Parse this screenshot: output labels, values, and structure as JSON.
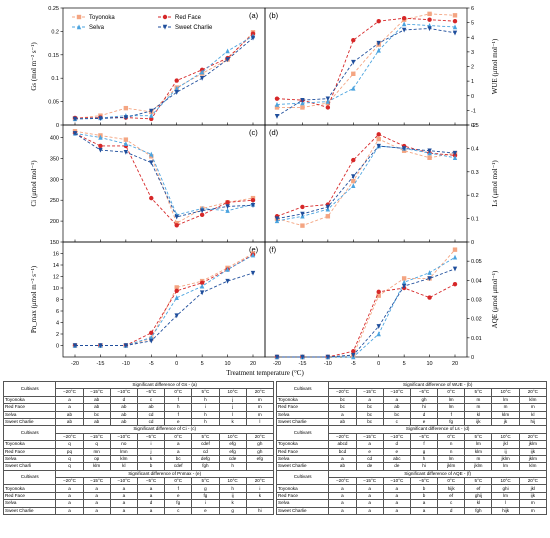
{
  "chart_data": [
    {
      "type": "line",
      "panel": "(a)",
      "ylabel": "Gs (mol m⁻² s⁻¹)",
      "ylim": [
        0.0,
        0.25
      ],
      "yticks": [
        0.0,
        0.05,
        0.1,
        0.15,
        0.2,
        0.25
      ],
      "x": [
        -20,
        -15,
        -10,
        -5,
        0,
        5,
        10,
        20
      ],
      "series": [
        {
          "name": "Toyonoka",
          "values": [
            0.014,
            0.02,
            0.036,
            0.028,
            0.08,
            0.11,
            0.14,
            0.198
          ]
        },
        {
          "name": "Red Face",
          "values": [
            0.015,
            0.016,
            0.016,
            0.013,
            0.095,
            0.118,
            0.143,
            0.195
          ]
        },
        {
          "name": "Selva",
          "values": [
            0.013,
            0.015,
            0.02,
            0.02,
            0.078,
            0.113,
            0.158,
            0.19
          ]
        },
        {
          "name": "Sweet Charlie",
          "values": [
            0.013,
            0.014,
            0.016,
            0.03,
            0.07,
            0.1,
            0.14,
            0.186
          ]
        }
      ]
    },
    {
      "type": "line",
      "panel": "(b)",
      "ylabel": "WUE (μmol mol⁻¹)",
      "ylim": [
        -2,
        6
      ],
      "yticks": [
        -2,
        -1,
        0,
        1,
        2,
        3,
        4,
        5,
        6
      ],
      "x": [
        -20,
        -15,
        -10,
        -5,
        0,
        5,
        10,
        20
      ],
      "series": [
        {
          "name": "Toyonoka",
          "values": [
            -0.8,
            -0.8,
            -0.5,
            1.5,
            3.5,
            5.2,
            5.6,
            5.5
          ]
        },
        {
          "name": "Red Face",
          "values": [
            -0.2,
            -0.3,
            -0.8,
            3.8,
            5.1,
            5.3,
            5.2,
            5.1
          ]
        },
        {
          "name": "Selva",
          "values": [
            -0.6,
            -0.5,
            -0.4,
            0.5,
            3.1,
            4.9,
            4.8,
            4.7
          ]
        },
        {
          "name": "Sweet Charlie",
          "values": [
            -1.4,
            -0.3,
            -0.2,
            2.3,
            3.6,
            4.5,
            4.6,
            4.3
          ]
        }
      ]
    },
    {
      "type": "line",
      "panel": "(c)",
      "ylabel": "Ci (μmol mol⁻¹)",
      "ylim": [
        150,
        430
      ],
      "yticks": [
        150,
        200,
        250,
        300,
        350,
        400
      ],
      "x": [
        -20,
        -15,
        -10,
        -5,
        0,
        5,
        10,
        20
      ],
      "series": [
        {
          "name": "Toyonoka",
          "values": [
            415,
            405,
            395,
            355,
            195,
            230,
            245,
            255
          ]
        },
        {
          "name": "Red Face",
          "values": [
            410,
            380,
            380,
            255,
            190,
            215,
            245,
            250
          ]
        },
        {
          "name": "Selva",
          "values": [
            410,
            400,
            385,
            360,
            215,
            230,
            225,
            240
          ]
        },
        {
          "name": "Sweet Charlie",
          "values": [
            410,
            370,
            365,
            340,
            210,
            225,
            235,
            238
          ]
        }
      ]
    },
    {
      "type": "line",
      "panel": "(d)",
      "ylabel": "Ls (μmol mol⁻¹)",
      "ylim": [
        0.0,
        0.5
      ],
      "yticks": [
        0.0,
        0.1,
        0.2,
        0.3,
        0.4,
        0.5
      ],
      "x": [
        -20,
        -15,
        -10,
        -5,
        0,
        5,
        10,
        20
      ],
      "series": [
        {
          "name": "Toyonoka",
          "values": [
            0.1,
            0.07,
            0.11,
            0.26,
            0.44,
            0.39,
            0.36,
            0.38
          ]
        },
        {
          "name": "Red Face",
          "values": [
            0.11,
            0.15,
            0.16,
            0.35,
            0.46,
            0.41,
            0.38,
            0.37
          ]
        },
        {
          "name": "Selva",
          "values": [
            0.09,
            0.11,
            0.14,
            0.24,
            0.41,
            0.4,
            0.38,
            0.36
          ]
        },
        {
          "name": "Sweet Charlie",
          "values": [
            0.1,
            0.12,
            0.15,
            0.28,
            0.41,
            0.4,
            0.39,
            0.38
          ]
        }
      ]
    },
    {
      "type": "line",
      "panel": "(e)",
      "ylabel": "Pn_max (μmol m⁻² s⁻¹)",
      "ylim": [
        -2,
        18
      ],
      "yticks": [
        0,
        2,
        4,
        6,
        8,
        10,
        12,
        14,
        16
      ],
      "x": [
        -20,
        -15,
        -10,
        -5,
        0,
        5,
        10,
        20
      ],
      "series": [
        {
          "name": "Toyonoka",
          "values": [
            0,
            0,
            0,
            1.2,
            10.1,
            11.2,
            13.5,
            16
          ]
        },
        {
          "name": "Red Face",
          "values": [
            0,
            0,
            0,
            2.2,
            9.5,
            10.9,
            13.2,
            15.8
          ]
        },
        {
          "name": "Selva",
          "values": [
            0,
            0,
            0,
            1.4,
            8.3,
            10.3,
            13.2,
            15.7
          ]
        },
        {
          "name": "Sweet Charlie",
          "values": [
            0,
            0,
            0,
            0.8,
            5.2,
            9.2,
            11.2,
            12.6
          ]
        }
      ]
    },
    {
      "type": "line",
      "panel": "(f)",
      "ylabel": "AQE (μmol μmol⁻¹)",
      "ylim": [
        0.0,
        0.06
      ],
      "yticks": [
        0.0,
        0.01,
        0.02,
        0.03,
        0.04,
        0.05
      ],
      "x": [
        -20,
        -15,
        -10,
        -5,
        0,
        5,
        10,
        20
      ],
      "series": [
        {
          "name": "Toyonoka",
          "values": [
            0,
            0,
            0,
            0.001,
            0.032,
            0.041,
            0.041,
            0.056
          ]
        },
        {
          "name": "Red Face",
          "values": [
            0,
            0,
            0,
            0.003,
            0.034,
            0.036,
            0.031,
            0.038
          ]
        },
        {
          "name": "Selva",
          "values": [
            0,
            0,
            0,
            0,
            0.012,
            0.039,
            0.044,
            0.052
          ]
        },
        {
          "name": "Sweet Charlie",
          "values": [
            0,
            0,
            0,
            0.001,
            0.016,
            0.037,
            0.041,
            0.046
          ]
        }
      ]
    }
  ],
  "figure": {
    "xlabel": "Treatment temperature (°C)",
    "xticks": [
      "-20",
      "-15",
      "-10",
      "-5",
      "0",
      "5",
      "10",
      "20"
    ],
    "panel_labels": [
      "(a)",
      "(b)",
      "(c)",
      "(d)",
      "(e)",
      "(f)"
    ],
    "colors": {
      "Toyonoka": "#f4a582",
      "Red Face": "#d62728",
      "Selva": "#4aa3df",
      "Sweet Charlie": "#1f4e9c"
    },
    "legend_position": "top-left of panel (a)"
  },
  "tables": {
    "cultivars_header": "Cultivars",
    "temps": [
      "−20°C",
      "−15°C",
      "−10°C",
      "−5°C",
      "0°C",
      "5°C",
      "10°C",
      "20°C"
    ],
    "left": [
      {
        "title": "Significant difference of Gs - (a)",
        "rows": [
          {
            "name": "Toyonoka",
            "v": [
              "a",
              "ab",
              "d",
              "c",
              "f",
              "h",
              "j",
              "m"
            ]
          },
          {
            "name": "Red Face",
            "v": [
              "a",
              "ab",
              "ab",
              "ab",
              "h",
              "i",
              "j",
              "m"
            ]
          },
          {
            "name": "Selva",
            "v": [
              "ab",
              "bc",
              "ab",
              "cd",
              "f",
              "h",
              "l",
              "m"
            ]
          },
          {
            "name": "Sweet Charlie",
            "v": [
              "ab",
              "ab",
              "ab",
              "cd",
              "e",
              "h",
              "k",
              "l"
            ]
          }
        ]
      },
      {
        "title": "Significant difference of Ci - (c)",
        "rows": [
          {
            "name": "Toyonoka",
            "v": [
              "q",
              "q",
              "no",
              "i",
              "a",
              "cdef",
              "efg",
              "gh"
            ]
          },
          {
            "name": "Red Face",
            "v": [
              "pq",
              "mn",
              "lmn",
              "j",
              "a",
              "cd",
              "efg",
              "gh"
            ]
          },
          {
            "name": "Selva",
            "v": [
              "q",
              "op",
              "klm",
              "k",
              "bc",
              "defg",
              "cde",
              "efg"
            ]
          },
          {
            "name": "Sweet Charli",
            "v": [
              "q",
              "klm",
              "kl",
              "b",
              "cdef",
              "fgh",
              "h",
              ""
            ]
          }
        ]
      },
      {
        "title": "Significant difference of Pnmax - (e)",
        "rows": [
          {
            "name": "Toyonoka",
            "v": [
              "a",
              "a",
              "a",
              "a",
              "f",
              "g",
              "h",
              "i"
            ]
          },
          {
            "name": "Red Face",
            "v": [
              "a",
              "a",
              "a",
              "a",
              "e",
              "fg",
              "ij",
              "k"
            ]
          },
          {
            "name": "Selva",
            "v": [
              "a",
              "a",
              "a",
              "d",
              "fg",
              "i",
              "k",
              ""
            ]
          },
          {
            "name": "Sweet Charlie",
            "v": [
              "a",
              "a",
              "a",
              "a",
              "c",
              "e",
              "g",
              "hi"
            ]
          }
        ]
      }
    ],
    "right": [
      {
        "title": "Significant difference of WUE - (b)",
        "rows": [
          {
            "name": "Toyonoka",
            "v": [
              "bc",
              "a",
              "a",
              "gh",
              "lm",
              "m",
              "lm",
              "klm"
            ]
          },
          {
            "name": "Red Face",
            "v": [
              "bc",
              "bc",
              "ab",
              "hi",
              "lm",
              "m",
              "m",
              "m"
            ]
          },
          {
            "name": "Selva",
            "v": [
              "a",
              "bc",
              "bc",
              "d",
              "f",
              "kl",
              "klm",
              "kl"
            ]
          },
          {
            "name": "Sweet Charlie",
            "v": [
              "ab",
              "bc",
              "c",
              "e",
              "fg",
              "ijk",
              "jk",
              "hij"
            ]
          }
        ]
      },
      {
        "title": "Significant difference of Ls - (d)",
        "rows": [
          {
            "name": "Toyonoka",
            "v": [
              "abcd",
              "a",
              "d",
              "f",
              "n",
              "lm",
              "jkl",
              "jklm"
            ]
          },
          {
            "name": "Red Face",
            "v": [
              "bcd",
              "e",
              "e",
              "g",
              "n",
              "klm",
              "ij",
              "ijk"
            ]
          },
          {
            "name": "Selva",
            "v": [
              "a",
              "cd",
              "abc",
              "h",
              "lm",
              "m",
              "jklm",
              "jklm"
            ]
          },
          {
            "name": "Sweet Charlie",
            "v": [
              "ab",
              "de",
              "de",
              "hi",
              "jklm",
              "jklm",
              "lm",
              "klm"
            ]
          }
        ]
      },
      {
        "title": "Significant difference of AQE - (f)",
        "rows": [
          {
            "name": "Toyonoka",
            "v": [
              "a",
              "a",
              "a",
              "b",
              "hijk",
              "ef",
              "ghi",
              "jkl"
            ]
          },
          {
            "name": "Red Face",
            "v": [
              "a",
              "a",
              "a",
              "b",
              "ef",
              "ghij",
              "lm",
              "ijk"
            ]
          },
          {
            "name": "Selva",
            "v": [
              "a",
              "a",
              "a",
              "a",
              "c",
              "kl",
              "l",
              "m"
            ]
          },
          {
            "name": "Sweet Charlie",
            "v": [
              "a",
              "a",
              "a",
              "a",
              "d",
              "fgh",
              "hijk",
              "m"
            ]
          }
        ]
      }
    ]
  }
}
